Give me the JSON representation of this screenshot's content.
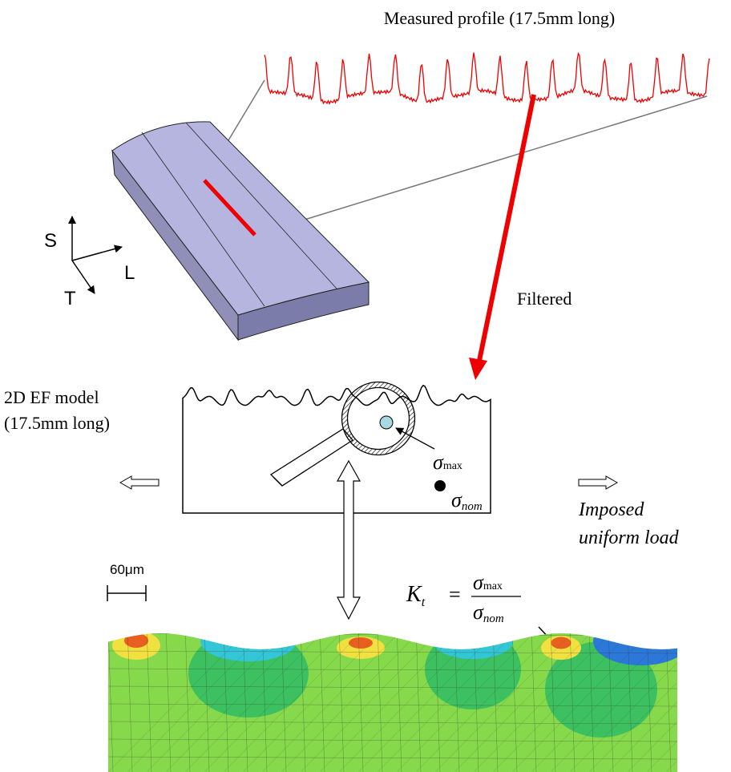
{
  "profile": {
    "label": "Measured profile (17.5mm long)"
  },
  "axes": {
    "s": "S",
    "l": "L",
    "t": "T"
  },
  "filter": {
    "label": "Filtered"
  },
  "model": {
    "line1": "2D EF model",
    "line2": "(17.5mm long)"
  },
  "stress": {
    "symbol": "σ",
    "max": "max",
    "nom": "nom"
  },
  "load": {
    "line1": "Imposed",
    "line2": "uniform load"
  },
  "scale": {
    "label": "60μm"
  },
  "formula": {
    "k": "K",
    "sub": "t",
    "eq": "="
  }
}
